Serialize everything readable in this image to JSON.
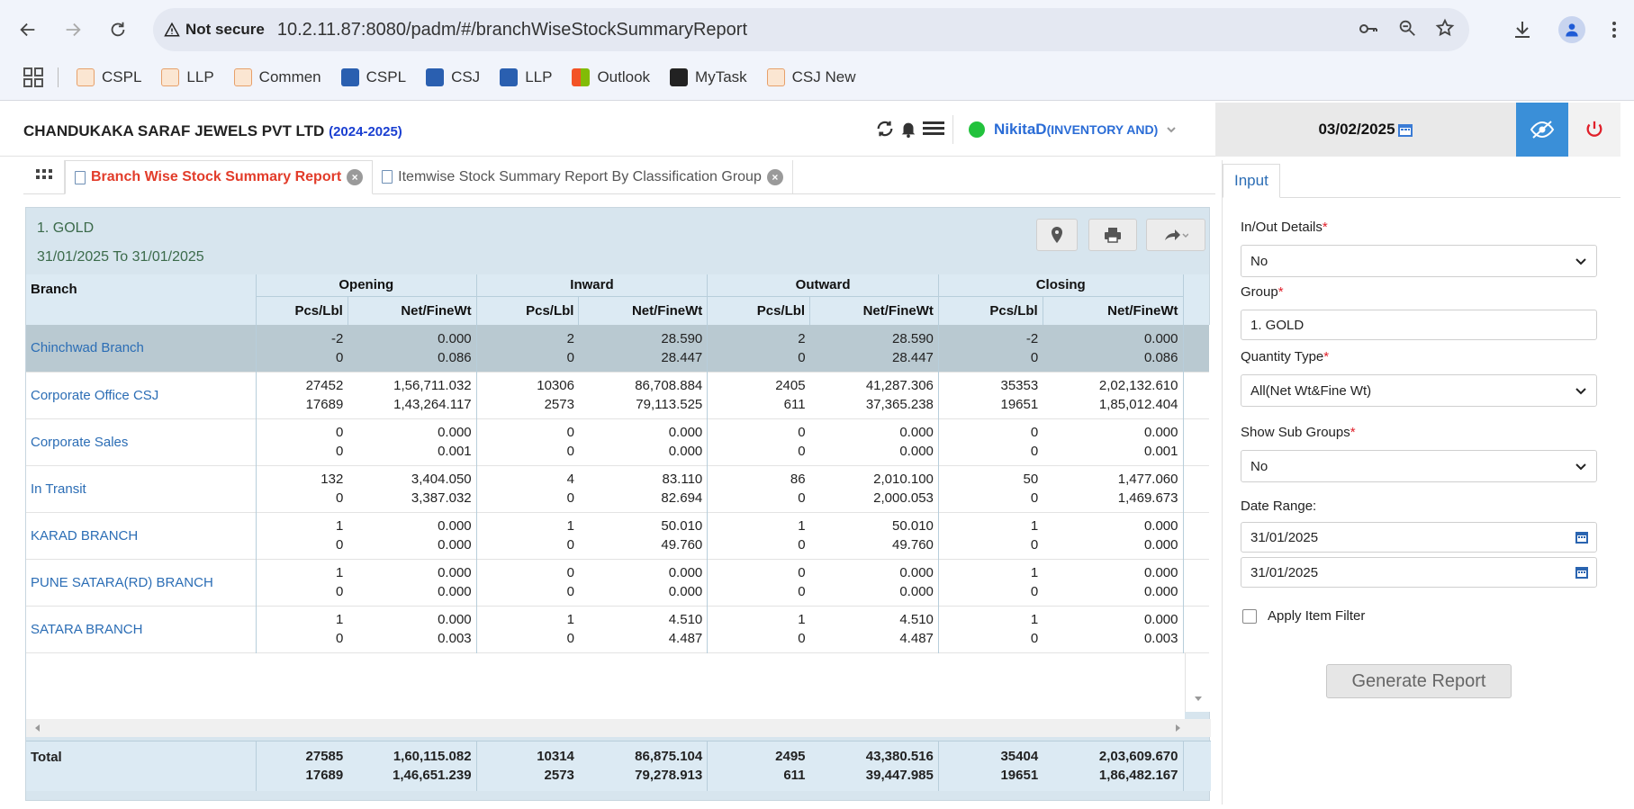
{
  "browser": {
    "security_label": "Not secure",
    "url": "10.2.11.87:8080/padm/#/branchWiseStockSummaryReport",
    "bookmarks": [
      {
        "label": "CSPL"
      },
      {
        "label": "LLP"
      },
      {
        "label": "Commen"
      },
      {
        "label": "CSPL"
      },
      {
        "label": "CSJ"
      },
      {
        "label": "LLP"
      },
      {
        "label": "Outlook"
      },
      {
        "label": "MyTask"
      },
      {
        "label": "CSJ New"
      }
    ]
  },
  "header": {
    "company": "CHANDUKAKA SARAF JEWELS PVT LTD",
    "year": "(2024-2025)",
    "user": "NikitaD",
    "role": "(INVENTORY AND)",
    "date": "03/02/2025"
  },
  "tabs": [
    {
      "label": "Branch Wise Stock Summary Report"
    },
    {
      "label": "Itemwise Stock Summary Report By Classification Group"
    }
  ],
  "report": {
    "title": "1. GOLD",
    "subtitle": "31/01/2025 To 31/01/2025",
    "columns": {
      "branch": "Branch",
      "groups": [
        "Opening",
        "Inward",
        "Outward",
        "Closing"
      ],
      "pcs": "Pcs/Lbl",
      "net": "Net/FineWt"
    },
    "rows": [
      {
        "branch": "Chinchwad Branch",
        "v": [
          [
            "-2",
            "0"
          ],
          [
            "0.000",
            "0.086"
          ],
          [
            "2",
            "0"
          ],
          [
            "28.590",
            "28.447"
          ],
          [
            "2",
            "0"
          ],
          [
            "28.590",
            "28.447"
          ],
          [
            "-2",
            "0"
          ],
          [
            "0.000",
            "0.086"
          ]
        ]
      },
      {
        "branch": "Corporate Office CSJ",
        "v": [
          [
            "27452",
            "17689"
          ],
          [
            "1,56,711.032",
            "1,43,264.117"
          ],
          [
            "10306",
            "2573"
          ],
          [
            "86,708.884",
            "79,113.525"
          ],
          [
            "2405",
            "611"
          ],
          [
            "41,287.306",
            "37,365.238"
          ],
          [
            "35353",
            "19651"
          ],
          [
            "2,02,132.610",
            "1,85,012.404"
          ]
        ]
      },
      {
        "branch": "Corporate Sales",
        "v": [
          [
            "0",
            "0"
          ],
          [
            "0.000",
            "0.001"
          ],
          [
            "0",
            "0"
          ],
          [
            "0.000",
            "0.000"
          ],
          [
            "0",
            "0"
          ],
          [
            "0.000",
            "0.000"
          ],
          [
            "0",
            "0"
          ],
          [
            "0.000",
            "0.001"
          ]
        ]
      },
      {
        "branch": "In Transit",
        "v": [
          [
            "132",
            "0"
          ],
          [
            "3,404.050",
            "3,387.032"
          ],
          [
            "4",
            "0"
          ],
          [
            "83.110",
            "82.694"
          ],
          [
            "86",
            "0"
          ],
          [
            "2,010.100",
            "2,000.053"
          ],
          [
            "50",
            "0"
          ],
          [
            "1,477.060",
            "1,469.673"
          ]
        ]
      },
      {
        "branch": "KARAD BRANCH",
        "v": [
          [
            "1",
            "0"
          ],
          [
            "0.000",
            "0.000"
          ],
          [
            "1",
            "0"
          ],
          [
            "50.010",
            "49.760"
          ],
          [
            "1",
            "0"
          ],
          [
            "50.010",
            "49.760"
          ],
          [
            "1",
            "0"
          ],
          [
            "0.000",
            "0.000"
          ]
        ]
      },
      {
        "branch": "PUNE SATARA(RD) BRANCH",
        "v": [
          [
            "1",
            "0"
          ],
          [
            "0.000",
            "0.000"
          ],
          [
            "0",
            "0"
          ],
          [
            "0.000",
            "0.000"
          ],
          [
            "0",
            "0"
          ],
          [
            "0.000",
            "0.000"
          ],
          [
            "1",
            "0"
          ],
          [
            "0.000",
            "0.000"
          ]
        ]
      },
      {
        "branch": "SATARA BRANCH",
        "v": [
          [
            "1",
            "0"
          ],
          [
            "0.000",
            "0.003"
          ],
          [
            "1",
            "0"
          ],
          [
            "4.510",
            "4.487"
          ],
          [
            "1",
            "0"
          ],
          [
            "4.510",
            "4.487"
          ],
          [
            "1",
            "0"
          ],
          [
            "0.000",
            "0.003"
          ]
        ]
      }
    ],
    "total": {
      "label": "Total",
      "v": [
        [
          "27585",
          "17689"
        ],
        [
          "1,60,115.082",
          "1,46,651.239"
        ],
        [
          "10314",
          "2573"
        ],
        [
          "86,875.104",
          "79,278.913"
        ],
        [
          "2495",
          "611"
        ],
        [
          "43,380.516",
          "39,447.985"
        ],
        [
          "35404",
          "19651"
        ],
        [
          "2,03,609.670",
          "1,86,482.167"
        ]
      ]
    }
  },
  "input_panel": {
    "tab": "Input",
    "inout_label": "In/Out Details",
    "inout_value": "No",
    "group_label": "Group",
    "group_value": "1. GOLD",
    "qty_label": "Quantity Type",
    "qty_value": "All(Net Wt&Fine Wt)",
    "subgroups_label": "Show Sub Groups",
    "subgroups_value": "No",
    "date_range_label": "Date Range:",
    "date_from": "31/01/2025",
    "date_to": "31/01/2025",
    "apply_filter_label": "Apply Item Filter",
    "generate_label": "Generate Report"
  },
  "colors": {
    "accent": "#3a8fd8",
    "active_tab": "#e23c2a",
    "link": "#2b6db5"
  }
}
